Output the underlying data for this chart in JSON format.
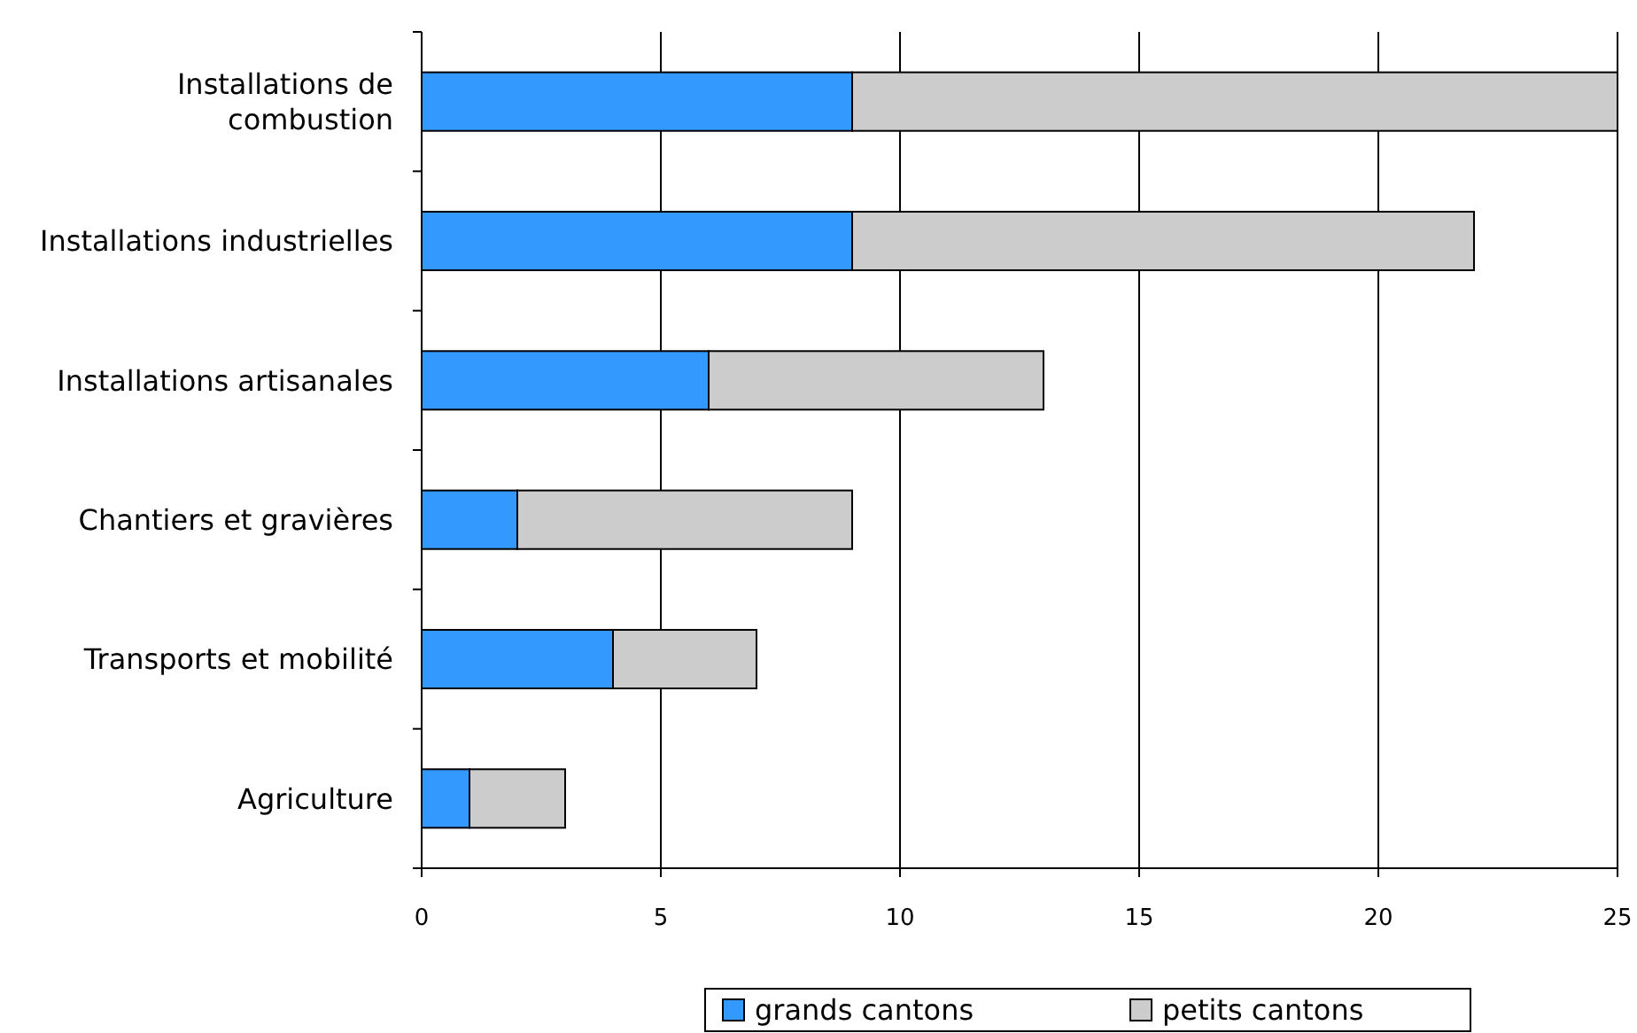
{
  "chart_data": {
    "type": "bar",
    "orientation": "horizontal",
    "stacked": true,
    "categories": [
      "Installations de combustion",
      "Installations industrielles",
      "Installations artisanales",
      "Chantiers et gravières",
      "Transports et mobilité",
      "Agriculture"
    ],
    "series": [
      {
        "name": "grands cantons",
        "color": "#3399ff",
        "values": [
          9,
          9,
          6,
          2,
          4,
          1
        ]
      },
      {
        "name": "petits cantons",
        "color": "#cccccc",
        "values": [
          16,
          13,
          7,
          7,
          3,
          2
        ]
      }
    ],
    "xlim": [
      0,
      25
    ],
    "xticks": [
      0,
      5,
      10,
      15,
      20,
      25
    ],
    "grid": "x",
    "legend": "bottom"
  }
}
